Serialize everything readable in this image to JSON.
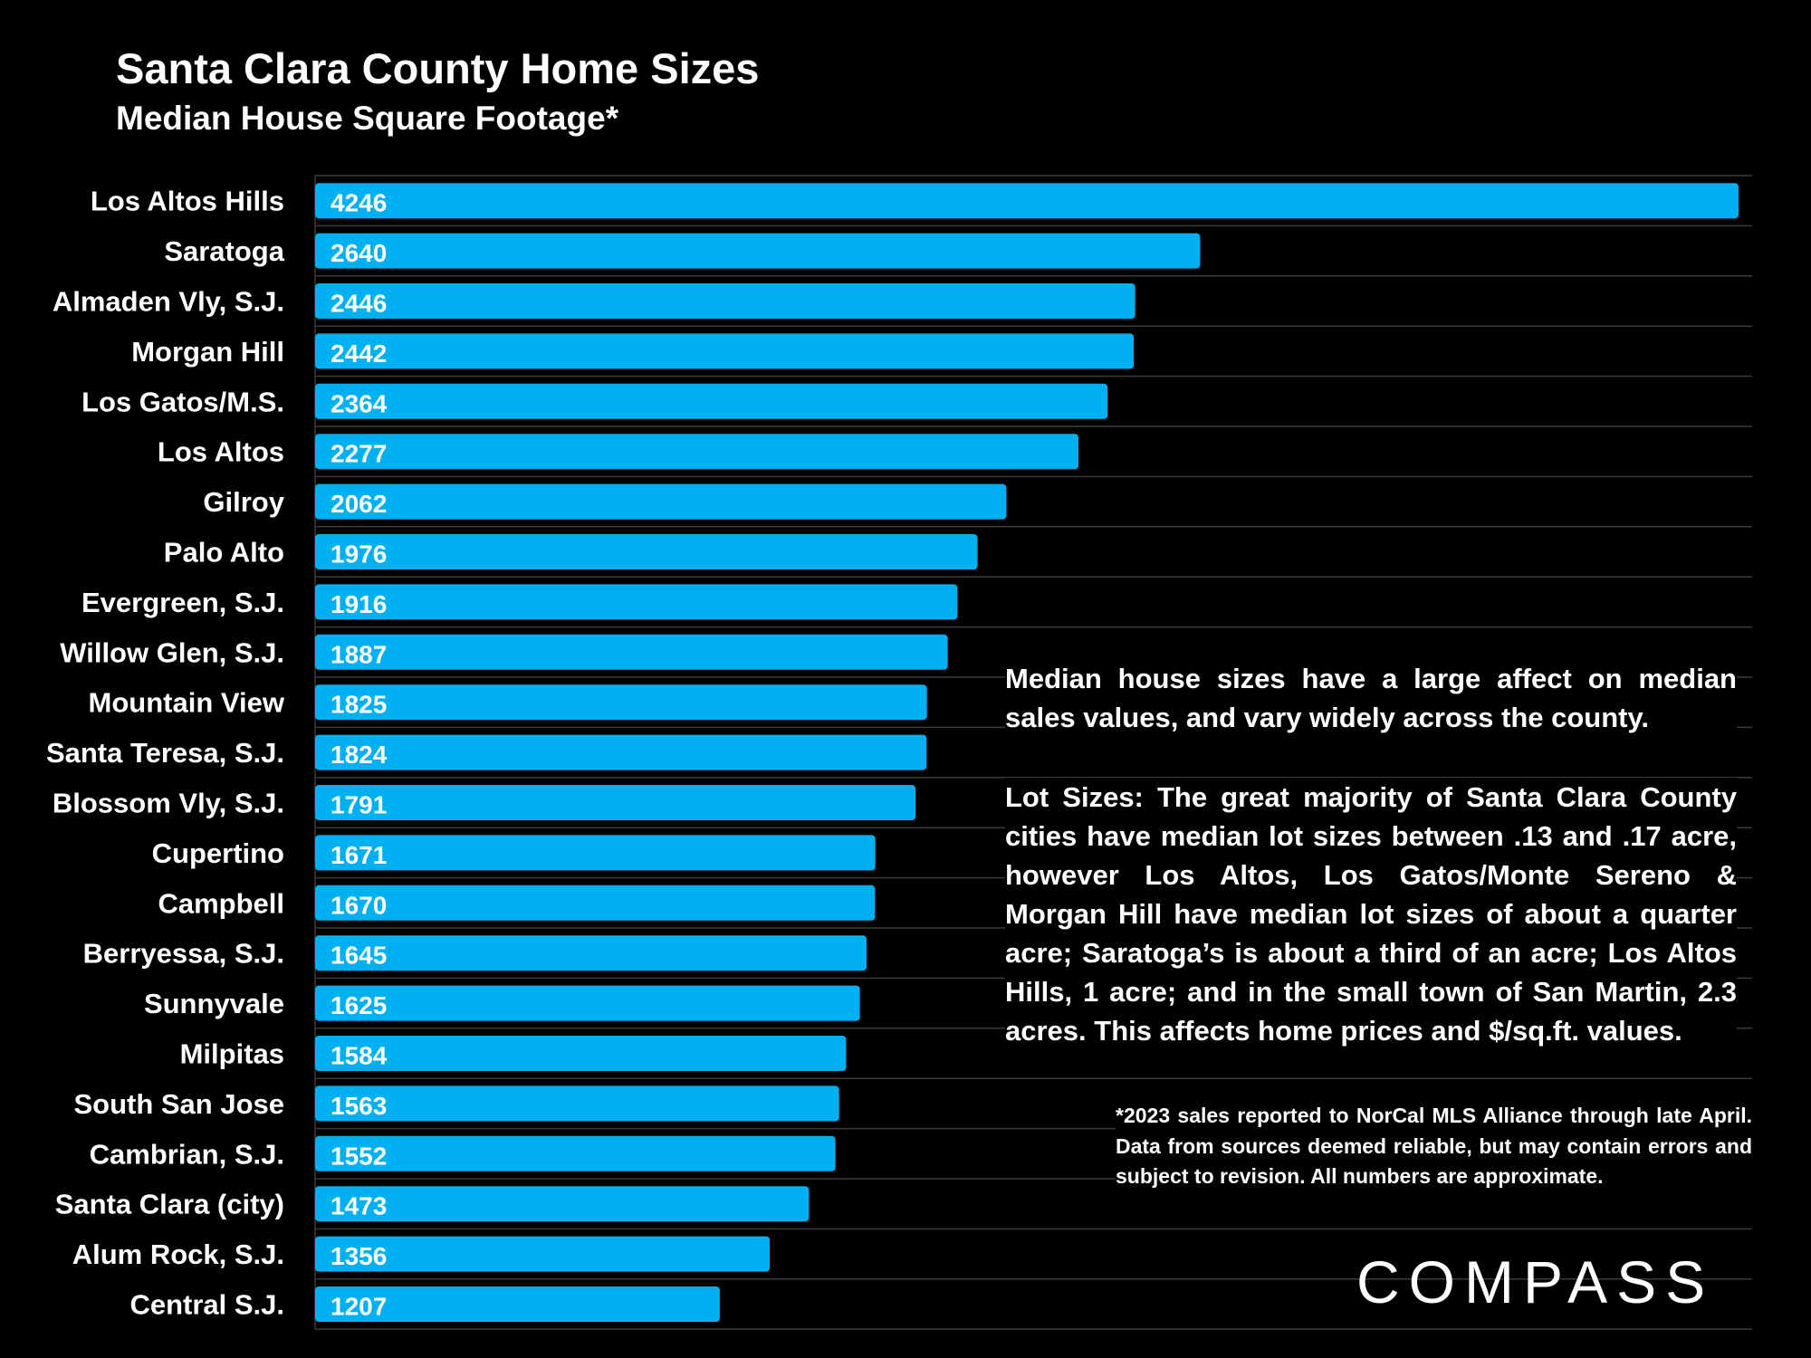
{
  "header": {
    "title": "Santa Clara County Home Sizes",
    "subtitle": "Median House Square Footage*"
  },
  "notes": {
    "paragraph1": "Median house sizes have a large affect on median sales values, and vary widely across the county.",
    "paragraph2": "Lot Sizes: The great majority of Santa Clara County cities have median lot sizes between .13 and .17 acre, however Los Altos, Los Gatos/Monte Sereno & Morgan Hill have median lot sizes of about a quarter acre; Saratoga’s is about a third of an acre; Los Altos Hills, 1 acre; and in the small town of San Martin, 2.3 acres. This affects home prices and $/sq.ft. values.",
    "footnote": "*2023 sales reported to NorCal MLS Alliance through late April. Data from sources deemed reliable, but may contain errors and subject to revision. All numbers are approximate."
  },
  "brand": {
    "logo_text": "COMPASS"
  },
  "colors": {
    "background": "#000000",
    "bar": "#00B0F0",
    "text": "#FFFFFF",
    "gridline": "#3a3a3a"
  },
  "chart_data": {
    "type": "bar",
    "orientation": "horizontal",
    "title": "Santa Clara County Home Sizes",
    "subtitle": "Median House Square Footage*",
    "categories": [
      "Los Altos Hills",
      "Saratoga",
      "Almaden Vly, S.J.",
      "Morgan Hill",
      "Los Gatos/M.S.",
      "Los Altos",
      "Gilroy",
      "Palo Alto",
      "Evergreen, S.J.",
      "Willow Glen, S.J.",
      "Mountain View",
      "Santa Teresa, S.J.",
      "Blossom Vly, S.J.",
      "Cupertino",
      "Campbell",
      "Berryessa, S.J.",
      "Sunnyvale",
      "Milpitas",
      "South San Jose",
      "Cambrian, S.J.",
      "Santa Clara (city)",
      "Alum Rock, S.J.",
      "Central S.J."
    ],
    "values": [
      4246,
      2640,
      2446,
      2442,
      2364,
      2277,
      2062,
      1976,
      1916,
      1887,
      1825,
      1824,
      1791,
      1671,
      1670,
      1645,
      1625,
      1584,
      1563,
      1552,
      1473,
      1356,
      1207
    ],
    "data_labels": true,
    "legend": "none",
    "grid": "horizontal separators"
  }
}
